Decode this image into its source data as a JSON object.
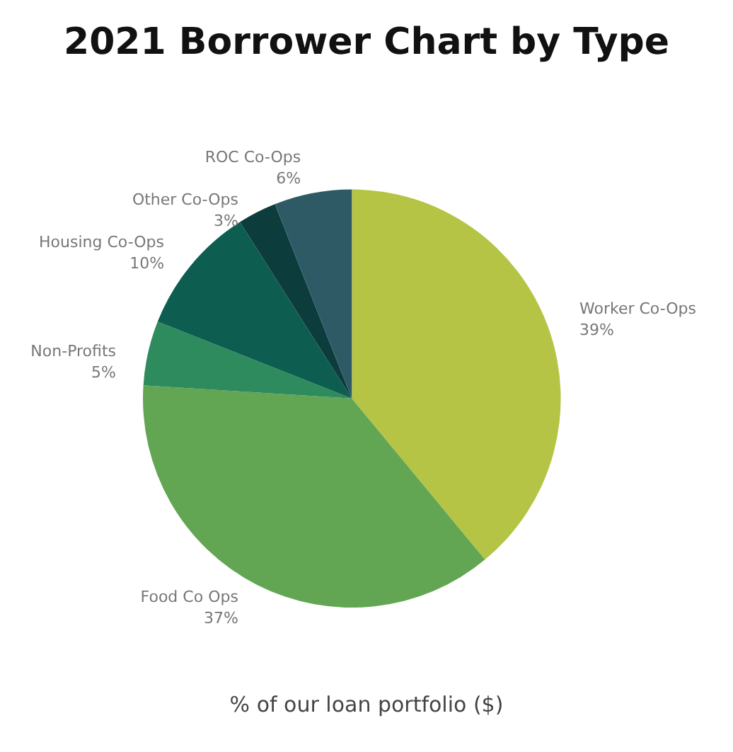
{
  "chart_data": {
    "type": "pie",
    "title": "2021 Borrower Chart by Type",
    "categories": [
      "Worker Co-Ops",
      "Food Co Ops",
      "Non-Profits",
      "Housing Co-Ops",
      "Other Co-Ops",
      "ROC Co-Ops"
    ],
    "values": [
      39,
      37,
      5,
      10,
      3,
      6
    ],
    "value_labels": [
      "39%",
      "37%",
      "5%",
      "10%",
      "3%",
      "6%"
    ],
    "colors": [
      "#b5c444",
      "#62a553",
      "#2e8b5e",
      "#0d5e50",
      "#0c3c3c",
      "#2e5a66"
    ],
    "annotations": [
      "% of our loan portfolio ($)"
    ],
    "legend": false
  }
}
